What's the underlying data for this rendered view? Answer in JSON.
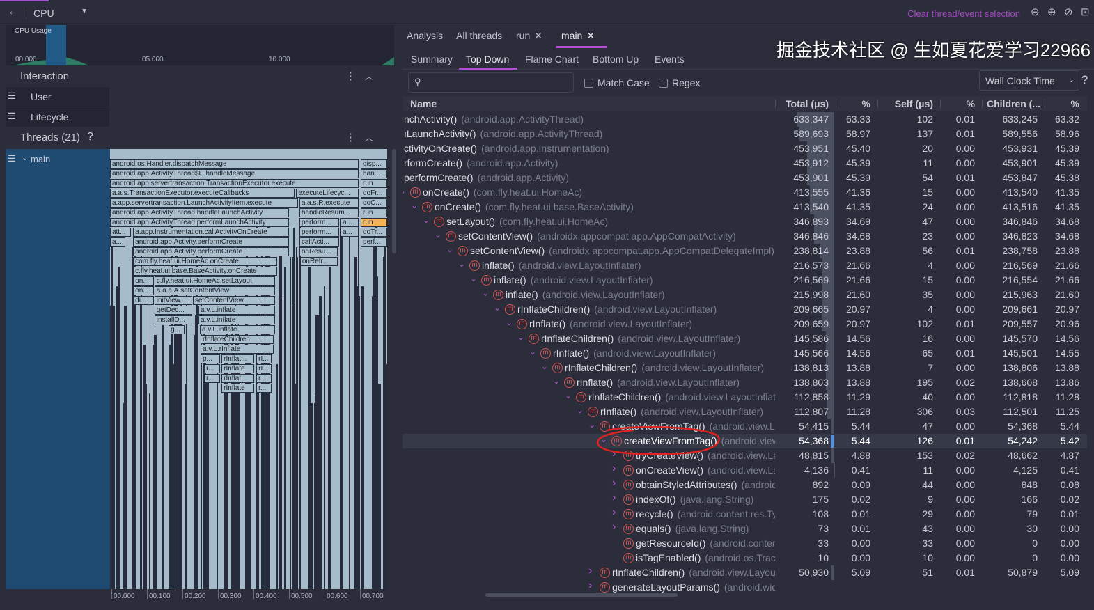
{
  "topbar": {
    "back_icon": "arrow-left-icon",
    "profiler": "CPU",
    "dropdown_icon": "triangle-down-icon",
    "clear_selection": "Clear thread/event selection",
    "zoom_icons": [
      "zoom-out-icon",
      "zoom-in-icon",
      "reset-zoom-icon",
      "fit-icon"
    ]
  },
  "cpu_chart": {
    "label": "CPU Usage",
    "ticks": [
      "00.000",
      "05.000",
      "10.000"
    ]
  },
  "interaction": {
    "title": "Interaction",
    "items": [
      "User",
      "Lifecycle"
    ]
  },
  "threads": {
    "title": "Threads (21)",
    "help": "?",
    "thread": "main"
  },
  "flame": {
    "axis": [
      "00.000",
      "00.100",
      "00.200",
      "00.300",
      "00.400",
      "00.500",
      "00.600",
      "00.700"
    ],
    "boxes": [
      [
        0,
        0,
        0.7,
        "android.os.Handler.dispatchMessage"
      ],
      [
        0,
        0.706,
        0.78,
        "disp..."
      ],
      [
        1,
        0,
        0.7,
        "android.app.ActivityThread$H.handleMessage"
      ],
      [
        1,
        0.706,
        0.78,
        "han..."
      ],
      [
        2,
        0,
        0.7,
        "android.app.servertransaction.TransactionExecutor.execute"
      ],
      [
        2,
        0.706,
        0.78,
        "run"
      ],
      [
        3,
        0,
        0.52,
        "a.a.s.TransactionExecutor.executeCallbacks"
      ],
      [
        3,
        0.524,
        0.7,
        "executeLifecyc..."
      ],
      [
        3,
        0.706,
        0.78,
        "doFr..."
      ],
      [
        4,
        0,
        0.529,
        "a.app.servertransaction.LaunchActivityItem.execute"
      ],
      [
        4,
        0.533,
        0.7,
        "a.a.s.R.execute"
      ],
      [
        4,
        0.706,
        0.78,
        "doC..."
      ],
      [
        5,
        0,
        0.504,
        "android.app.ActivityThread.handleLaunchActivity"
      ],
      [
        5,
        0.533,
        0.7,
        "handleResum..."
      ],
      [
        5,
        0.706,
        0.78,
        "run"
      ],
      [
        6,
        0,
        0.504,
        "android.app.ActivityThread.performLaunchActivity"
      ],
      [
        6,
        0.533,
        0.645,
        "perform..."
      ],
      [
        6,
        0.649,
        0.7,
        "a..."
      ],
      [
        6,
        0.706,
        0.78,
        "run",
        "selected"
      ],
      [
        7,
        0,
        0.059,
        "att..."
      ],
      [
        7,
        0.065,
        0.504,
        "a.app.Instrumentation.callActivityOnCreate"
      ],
      [
        7,
        0.533,
        0.645,
        "perform..."
      ],
      [
        7,
        0.649,
        0.7,
        "a..."
      ],
      [
        7,
        0.706,
        0.78,
        "doTr..."
      ],
      [
        8,
        0,
        0.043,
        "a..."
      ],
      [
        8,
        0.065,
        0.504,
        "android.app.Activity.performCreate"
      ],
      [
        8,
        0.533,
        0.645,
        "callActi..."
      ],
      [
        8,
        0.706,
        0.78,
        "perf..."
      ],
      [
        9,
        0.065,
        0.504,
        "android.app.Activity.performCreate"
      ],
      [
        9,
        0.533,
        0.641,
        "onResu..."
      ],
      [
        10,
        0.065,
        0.471,
        "com.fly.heat.ui.HomeAc.onCreate"
      ],
      [
        10,
        0.535,
        0.641,
        "onRefr..."
      ],
      [
        11,
        0.065,
        0.471,
        "c.fly.heat.ui.base.BaseActivity.onCreate"
      ],
      [
        12,
        0.065,
        0.124,
        "on..."
      ],
      [
        12,
        0.125,
        0.465,
        "c.fly.heat.ui.HomeAc.setLayout"
      ],
      [
        13,
        0.065,
        0.124,
        "on..."
      ],
      [
        13,
        0.125,
        0.465,
        "a.a.a.A.setContentView"
      ],
      [
        14,
        0.065,
        0.124,
        "di..."
      ],
      [
        14,
        0.125,
        0.231,
        "initView..."
      ],
      [
        14,
        0.233,
        0.465,
        "setContentView"
      ],
      [
        15,
        0.125,
        0.231,
        "getDec..."
      ],
      [
        15,
        0.249,
        0.465,
        "a.v.L.inflate"
      ],
      [
        16,
        0.125,
        0.231,
        "installD..."
      ],
      [
        16,
        0.249,
        0.465,
        "a.v.L.inflate"
      ],
      [
        17,
        0.165,
        0.21,
        "g..."
      ],
      [
        17,
        0.253,
        0.465,
        "a.v.L.inflate"
      ],
      [
        18,
        0.255,
        0.461,
        "rInflateChildren"
      ],
      [
        19,
        0.255,
        0.461,
        "a.v.L.rInflate"
      ],
      [
        20,
        0.255,
        0.31,
        "p..."
      ],
      [
        20,
        0.314,
        0.406,
        "rInflat..."
      ],
      [
        20,
        0.412,
        0.455,
        "rI..."
      ],
      [
        21,
        0.265,
        0.31,
        "r..."
      ],
      [
        21,
        0.314,
        0.406,
        "rInflate"
      ],
      [
        21,
        0.412,
        0.455,
        "rI..."
      ],
      [
        22,
        0.265,
        0.31,
        "r..."
      ],
      [
        22,
        0.314,
        0.406,
        "rInflat..."
      ],
      [
        22,
        0.412,
        0.455,
        "r..."
      ],
      [
        23,
        0.314,
        0.406,
        "rInflate"
      ],
      [
        23,
        0.412,
        0.455,
        "r..."
      ]
    ],
    "colors": {
      "box": "#a9bfce",
      "selected": "#f5b55a"
    }
  },
  "tabs": [
    {
      "label": "Analysis"
    },
    {
      "label": "All threads"
    },
    {
      "label": "run",
      "closable": true
    },
    {
      "label": "main",
      "closable": true,
      "active": true
    }
  ],
  "subtabs": [
    {
      "label": "Summary"
    },
    {
      "label": "Top Down",
      "active": true
    },
    {
      "label": "Flame Chart"
    },
    {
      "label": "Bottom Up"
    },
    {
      "label": "Events"
    }
  ],
  "search": {
    "placeholder": "",
    "icon": "search-icon",
    "match_case": "Match Case",
    "regex": "Regex"
  },
  "clock": {
    "selected": "Wall Clock Time",
    "help": "?"
  },
  "table": {
    "headers": [
      "Name",
      "Total (μs)",
      "%",
      "Self (μs)",
      "%",
      "Children (...",
      "%"
    ],
    "rows": [
      {
        "d": 0,
        "exp": "clip",
        "m": "nchActivity()",
        "c": "(android.app.ActivityThread)",
        "v": [
          "633,347",
          "63.33",
          "102",
          "0.01",
          "633,245",
          "63.32"
        ]
      },
      {
        "d": 0,
        "exp": "clip",
        "m": "ıLaunchActivity()",
        "c": "(android.app.ActivityThread)",
        "v": [
          "589,693",
          "58.97",
          "137",
          "0.01",
          "589,556",
          "58.96"
        ]
      },
      {
        "d": 0,
        "exp": "clip",
        "m": "ctivityOnCreate()",
        "c": "(android.app.Instrumentation)",
        "v": [
          "453,951",
          "45.40",
          "20",
          "0.00",
          "453,931",
          "45.39"
        ]
      },
      {
        "d": 0,
        "exp": "clip",
        "m": "rformCreate()",
        "c": "(android.app.Activity)",
        "v": [
          "453,912",
          "45.39",
          "11",
          "0.00",
          "453,901",
          "45.39"
        ]
      },
      {
        "d": 0,
        "exp": "clip",
        "m": " performCreate()",
        "c": "(android.app.Activity)",
        "v": [
          "453,901",
          "45.39",
          "54",
          "0.01",
          "453,847",
          "45.38"
        ]
      },
      {
        "d": 5,
        "exp": "down",
        "m": "onCreate()",
        "c": "(com.fly.heat.ui.HomeAc)",
        "v": [
          "413,555",
          "41.36",
          "15",
          "0.00",
          "413,540",
          "41.35"
        ]
      },
      {
        "d": 6,
        "exp": "down",
        "m": "onCreate()",
        "c": "(com.fly.heat.ui.base.BaseActivity)",
        "v": [
          "413,540",
          "41.35",
          "24",
          "0.00",
          "413,516",
          "41.35"
        ]
      },
      {
        "d": 7,
        "exp": "down",
        "m": "setLayout()",
        "c": "(com.fly.heat.ui.HomeAc)",
        "v": [
          "346,893",
          "34.69",
          "47",
          "0.00",
          "346,846",
          "34.68"
        ]
      },
      {
        "d": 8,
        "exp": "down",
        "m": "setContentView()",
        "c": "(androidx.appcompat.app.AppCompatActivity)",
        "v": [
          "346,846",
          "34.68",
          "23",
          "0.00",
          "346,823",
          "34.68"
        ]
      },
      {
        "d": 9,
        "exp": "down",
        "m": "setContentView()",
        "c": "(androidx.appcompat.app.AppCompatDelegateImpl)",
        "v": [
          "238,814",
          "23.88",
          "56",
          "0.01",
          "238,758",
          "23.88"
        ]
      },
      {
        "d": 10,
        "exp": "down",
        "m": "inflate()",
        "c": "(android.view.LayoutInflater)",
        "v": [
          "216,573",
          "21.66",
          "4",
          "0.00",
          "216,569",
          "21.66"
        ]
      },
      {
        "d": 11,
        "exp": "down",
        "m": "inflate()",
        "c": "(android.view.LayoutInflater)",
        "v": [
          "216,569",
          "21.66",
          "15",
          "0.00",
          "216,554",
          "21.66"
        ]
      },
      {
        "d": 12,
        "exp": "down",
        "m": "inflate()",
        "c": "(android.view.LayoutInflater)",
        "v": [
          "215,998",
          "21.60",
          "35",
          "0.00",
          "215,963",
          "21.60"
        ]
      },
      {
        "d": 13,
        "exp": "down",
        "m": "rInflateChildren()",
        "c": "(android.view.LayoutInflater)",
        "v": [
          "209,665",
          "20.97",
          "4",
          "0.00",
          "209,661",
          "20.97"
        ]
      },
      {
        "d": 14,
        "exp": "down",
        "m": "rInflate()",
        "c": "(android.view.LayoutInflater)",
        "v": [
          "209,659",
          "20.97",
          "102",
          "0.01",
          "209,557",
          "20.96"
        ]
      },
      {
        "d": 15,
        "exp": "down",
        "m": "rInflateChildren()",
        "c": "(android.view.LayoutInflater)",
        "v": [
          "145,586",
          "14.56",
          "16",
          "0.00",
          "145,570",
          "14.56"
        ]
      },
      {
        "d": 16,
        "exp": "down",
        "m": "rInflate()",
        "c": "(android.view.LayoutInflater)",
        "v": [
          "145,566",
          "14.56",
          "65",
          "0.01",
          "145,501",
          "14.55"
        ]
      },
      {
        "d": 17,
        "exp": "down",
        "m": "rInflateChildren()",
        "c": "(android.view.LayoutInflater)",
        "v": [
          "138,813",
          "13.88",
          "7",
          "0.00",
          "138,806",
          "13.88"
        ]
      },
      {
        "d": 18,
        "exp": "down",
        "m": "rInflate()",
        "c": "(android.view.LayoutInflater)",
        "v": [
          "138,803",
          "13.88",
          "195",
          "0.02",
          "138,608",
          "13.86"
        ]
      },
      {
        "d": 19,
        "exp": "down",
        "m": "rInflateChildren()",
        "c": "(android.view.LayoutInflat",
        "v": [
          "112,858",
          "11.29",
          "40",
          "0.00",
          "112,818",
          "11.28"
        ]
      },
      {
        "d": 20,
        "exp": "down",
        "m": "rInflate()",
        "c": "(android.view.LayoutInflater)",
        "v": [
          "112,807",
          "11.28",
          "306",
          "0.03",
          "112,501",
          "11.25"
        ]
      },
      {
        "d": 21,
        "exp": "down",
        "m": "createViewFromTag()",
        "c": "(android.view.La",
        "v": [
          "54,415",
          "5.44",
          "47",
          "0.00",
          "54,368",
          "5.44"
        ]
      },
      {
        "d": 22,
        "exp": "down",
        "m": "createViewFromTag()",
        "c": "(android.view",
        "sel": true,
        "v": [
          "54,368",
          "5.44",
          "126",
          "0.01",
          "54,242",
          "5.42"
        ]
      },
      {
        "d": 23,
        "exp": "right",
        "m": "tryCreateView()",
        "c": "(android.view.La",
        "v": [
          "48,815",
          "4.88",
          "153",
          "0.02",
          "48,662",
          "4.87"
        ]
      },
      {
        "d": 23,
        "exp": "right",
        "m": "onCreateView()",
        "c": "(android.view.La",
        "v": [
          "4,136",
          "0.41",
          "11",
          "0.00",
          "4,125",
          "0.41"
        ]
      },
      {
        "d": 23,
        "exp": "right",
        "m": "obtainStyledAttributes()",
        "c": "(android",
        "v": [
          "892",
          "0.09",
          "44",
          "0.00",
          "848",
          "0.08"
        ]
      },
      {
        "d": 23,
        "exp": "right",
        "m": "indexOf()",
        "c": "(java.lang.String)",
        "v": [
          "175",
          "0.02",
          "9",
          "0.00",
          "166",
          "0.02"
        ]
      },
      {
        "d": 23,
        "exp": "right",
        "m": "recycle()",
        "c": "(android.content.res.Ty",
        "v": [
          "108",
          "0.01",
          "29",
          "0.00",
          "79",
          "0.01"
        ]
      },
      {
        "d": 23,
        "exp": "right",
        "m": "equals()",
        "c": "(java.lang.String)",
        "v": [
          "73",
          "0.01",
          "43",
          "0.00",
          "30",
          "0.00"
        ]
      },
      {
        "d": 23,
        "exp": "none",
        "m": "getResourceId()",
        "c": "(android.conten",
        "v": [
          "33",
          "0.00",
          "33",
          "0.00",
          "0",
          "0.00"
        ]
      },
      {
        "d": 23,
        "exp": "none",
        "m": "isTagEnabled()",
        "c": "(android.os.Trace",
        "v": [
          "10",
          "0.00",
          "10",
          "0.00",
          "0",
          "0.00"
        ]
      },
      {
        "d": 21,
        "exp": "right",
        "m": "rInflateChildren()",
        "c": "(android.view.Layout",
        "v": [
          "50,930",
          "5.09",
          "51",
          "0.01",
          "50,879",
          "5.09"
        ]
      },
      {
        "d": 21,
        "exp": "right",
        "m": "generateLayoutParams()",
        "c": "(android.widc",
        "v": [
          "",
          "",
          "",
          "",
          "",
          ""
        ]
      }
    ],
    "method_icon": "method-m-icon",
    "colors": {
      "method_icon": "#d9534f",
      "chevron": "#b55ad6",
      "selected_row": "#363948",
      "annotation": "#e0221f"
    }
  },
  "watermark": "掘金技术社区 @ 生如夏花爱学习22966"
}
